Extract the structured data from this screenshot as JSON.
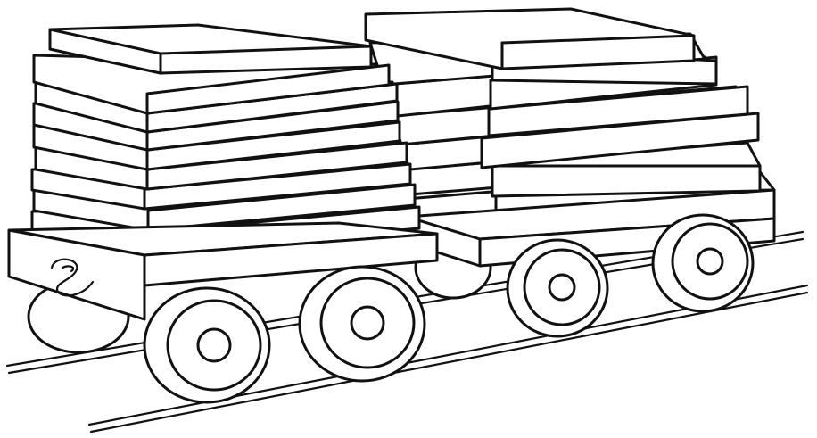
{
  "image": {
    "subject": "two-flatcar-train-with-stacked-planks-line-art",
    "colors": {
      "background": "#ffffff",
      "ink": "#111111"
    },
    "icon_names": [
      "rail-track",
      "flatcar",
      "plank",
      "wheel",
      "coupling-hook"
    ]
  }
}
